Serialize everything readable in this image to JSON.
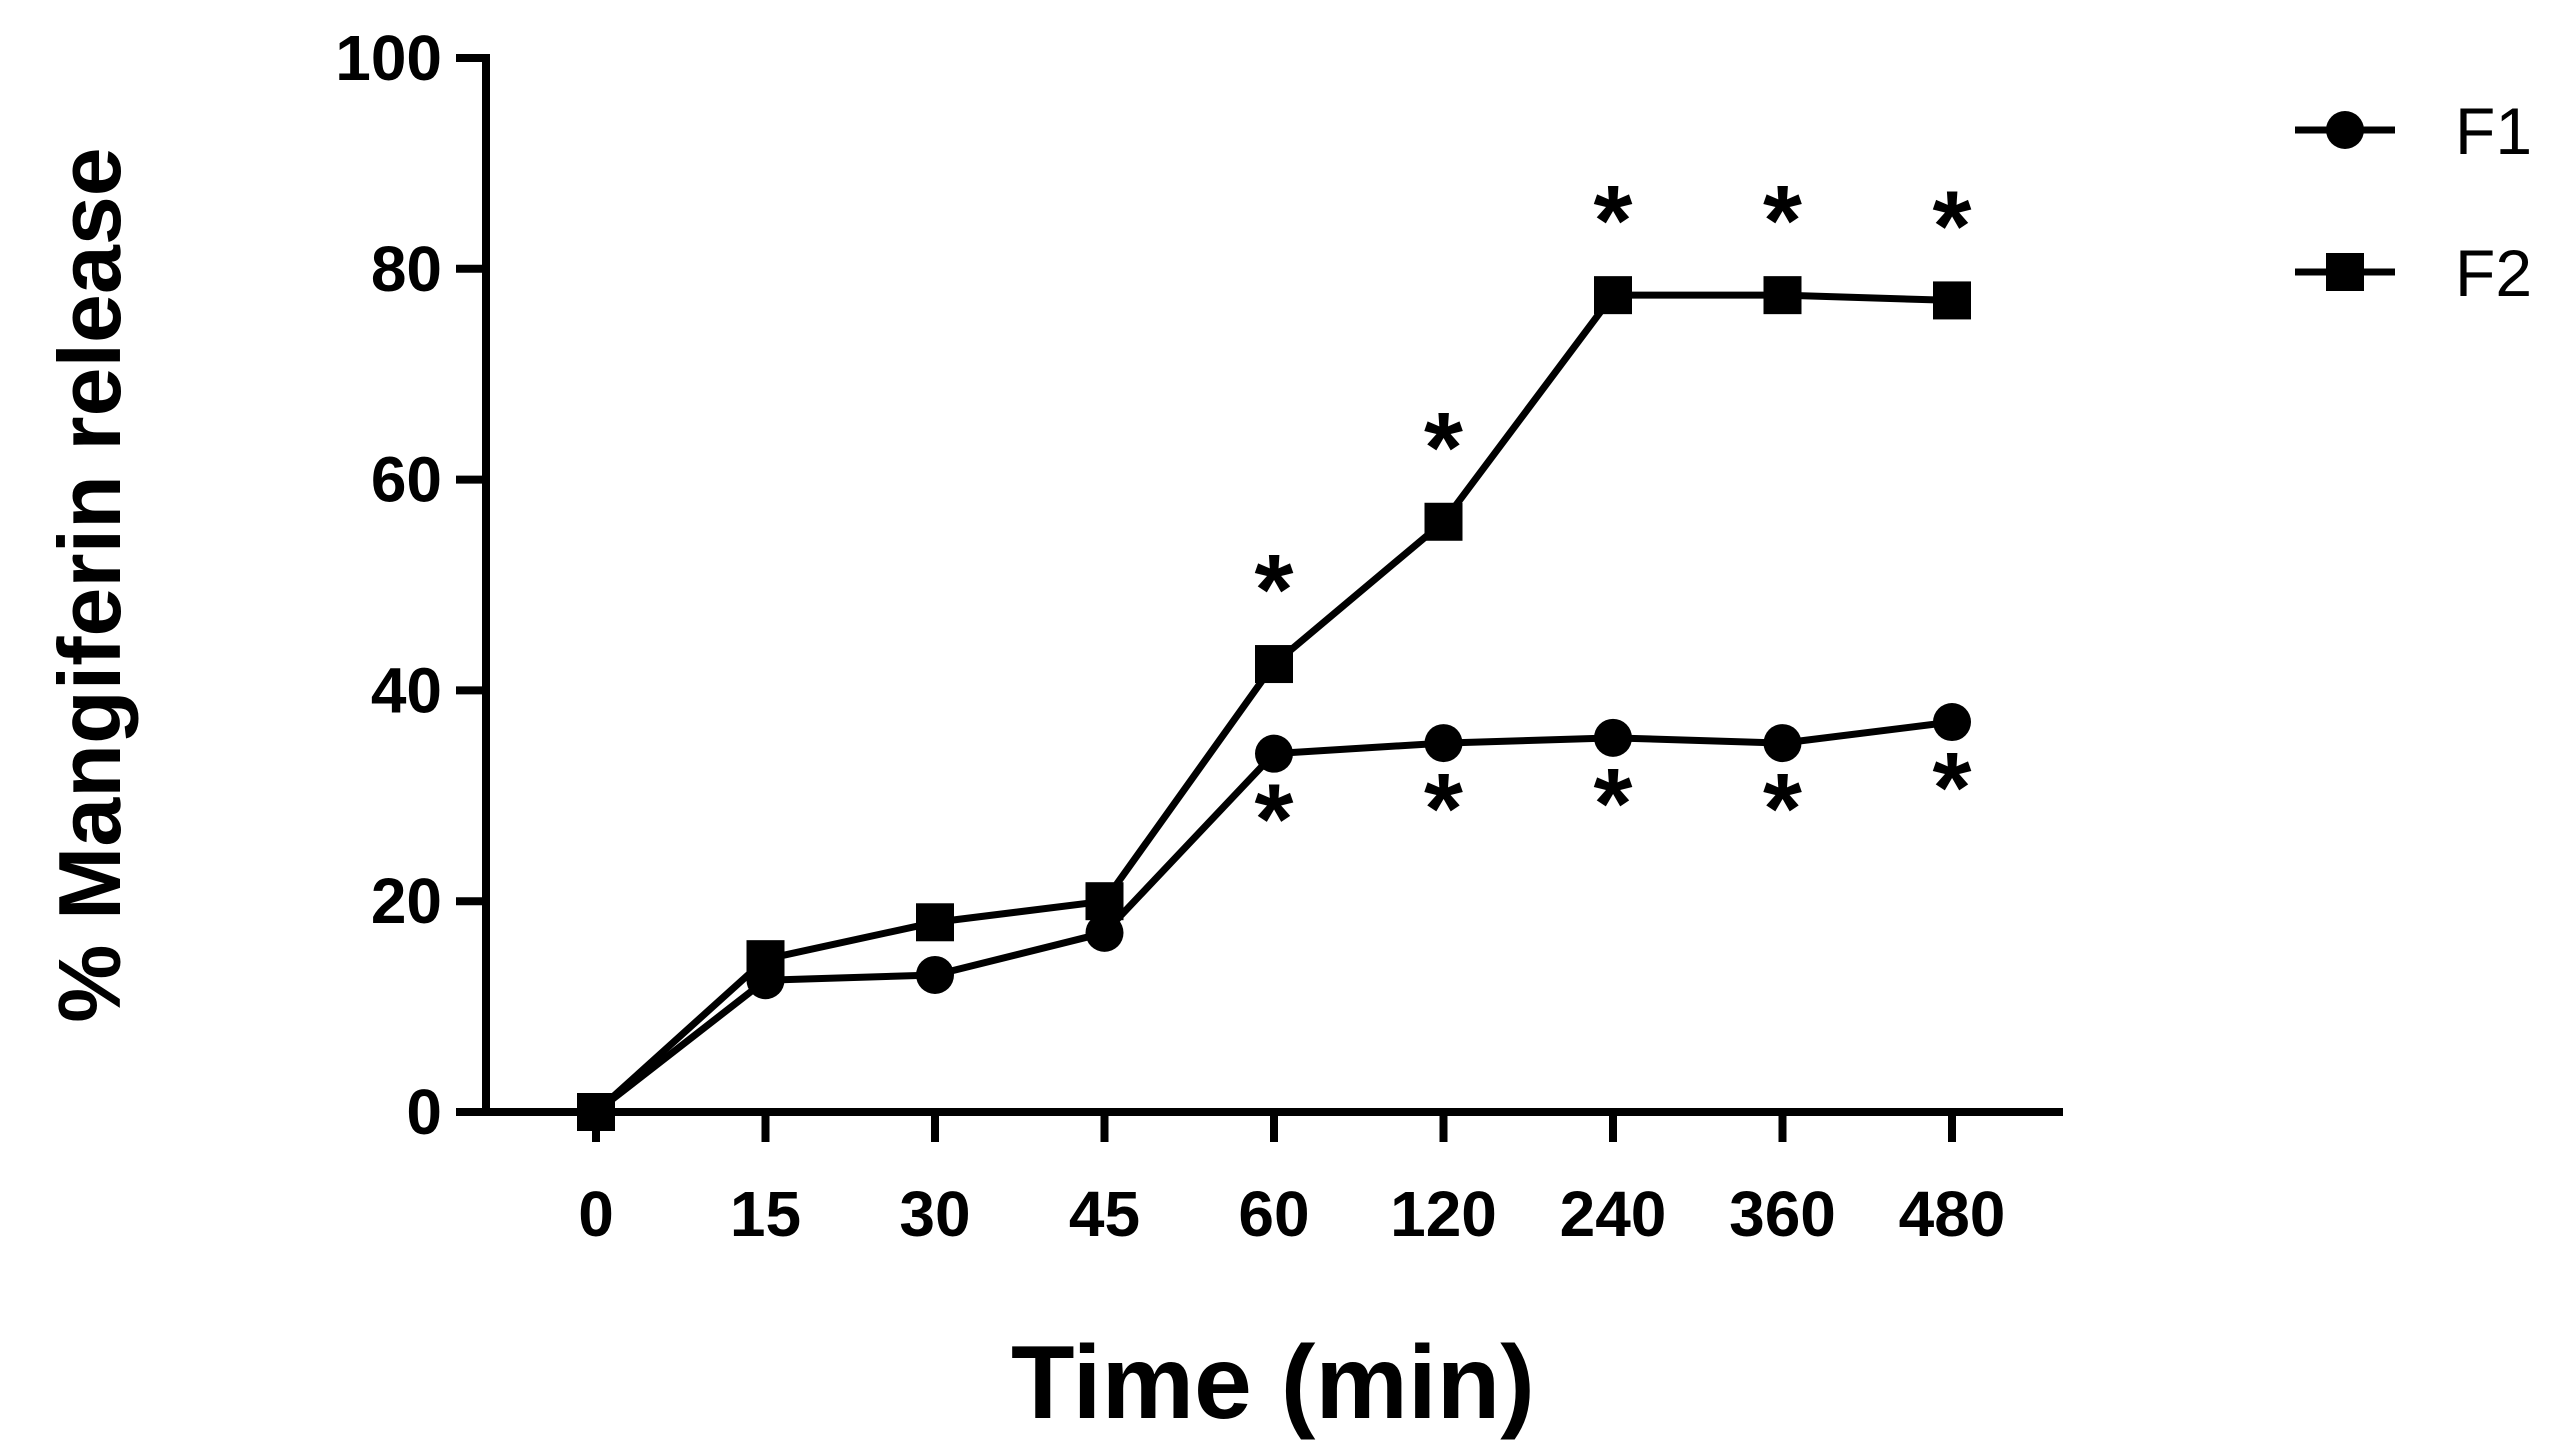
{
  "chart_data": {
    "type": "line",
    "title": "",
    "xlabel": "Time (min)",
    "ylabel": "% Mangiferin release",
    "categories": [
      "0",
      "15",
      "30",
      "45",
      "60",
      "120",
      "240",
      "360",
      "480"
    ],
    "ylim": [
      0,
      100
    ],
    "yticks": [
      "0",
      "20",
      "40",
      "60",
      "80",
      "100"
    ],
    "grid": false,
    "legend_position": "top-right",
    "series": [
      {
        "name": "F1",
        "marker": "circle",
        "color": "#000000",
        "values": [
          0,
          12.5,
          13,
          17,
          34,
          35,
          35.5,
          35,
          37
        ],
        "annotations": [
          "",
          "",
          "",
          "",
          "*",
          "*",
          "*",
          "*",
          "*"
        ]
      },
      {
        "name": "F2",
        "marker": "square",
        "color": "#000000",
        "values": [
          0,
          14.5,
          18,
          20,
          42.5,
          56,
          77.5,
          77.5,
          77
        ],
        "annotations": [
          "",
          "",
          "",
          "",
          "*",
          "*",
          "*",
          "*",
          "*"
        ]
      }
    ]
  }
}
